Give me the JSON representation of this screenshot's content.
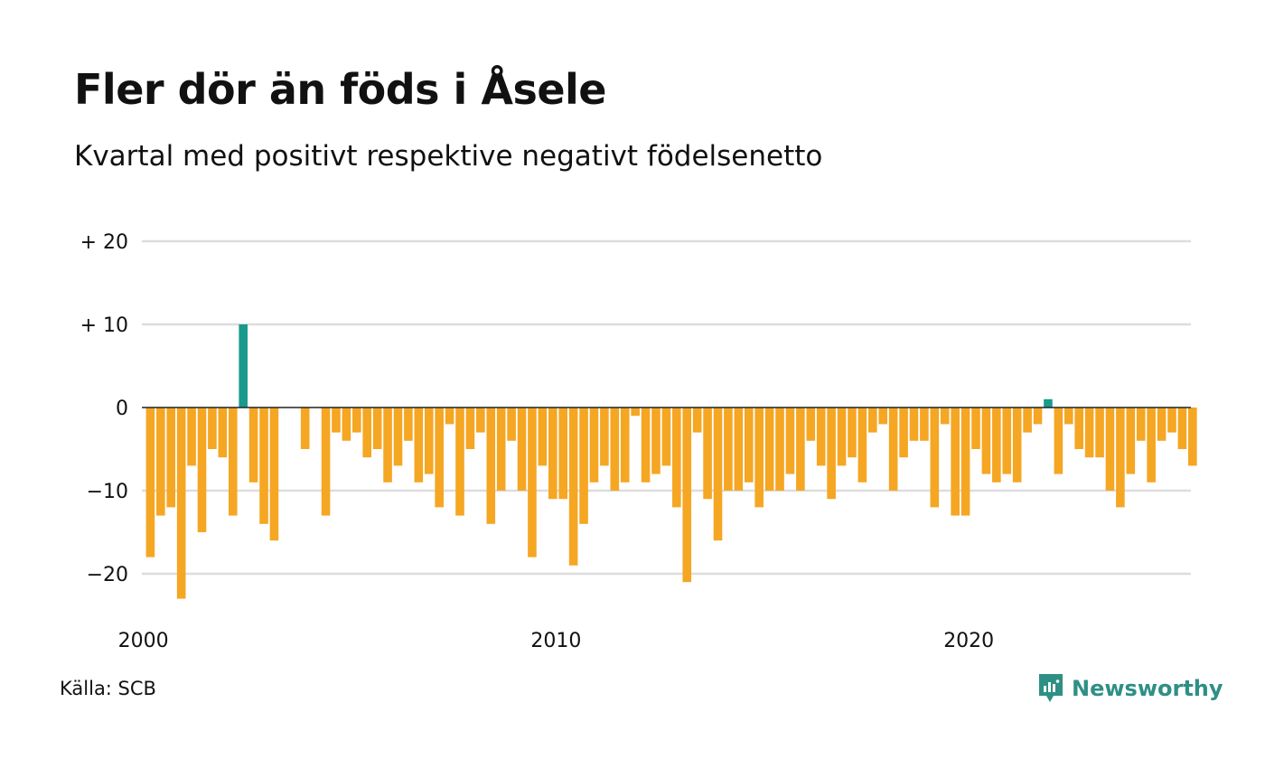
{
  "title": "Fler dör än föds i Åsele",
  "subtitle": "Kvartal med positivt respektive negativt födelsenetto",
  "source": "Källa: SCB",
  "brand": {
    "name": "Newsworthy",
    "icon": "newsworthy-logo-icon",
    "color": "#2e8f85"
  },
  "colors": {
    "positive": "#1a9a8c",
    "negative": "#f5a623",
    "grid": "#dddddd",
    "zero_line": "#222222"
  },
  "chart_data": {
    "type": "bar",
    "title": "Fler dör än föds i Åsele",
    "subtitle": "Kvartal med positivt respektive negativt födelsenetto",
    "xlabel": "",
    "ylabel": "",
    "ylim": [
      -25,
      20
    ],
    "y_ticks": [
      {
        "value": 20,
        "label": "+ 20"
      },
      {
        "value": 10,
        "label": "+ 10"
      },
      {
        "value": 0,
        "label": "0"
      },
      {
        "value": -10,
        "label": "−10"
      },
      {
        "value": -20,
        "label": "−20"
      }
    ],
    "x_start": 2000,
    "periods_per_year": 4,
    "x_ticks": [
      {
        "year": 2000,
        "label": "2000"
      },
      {
        "year": 2010,
        "label": "2010"
      },
      {
        "year": 2020,
        "label": "2020"
      }
    ],
    "grid": true,
    "values": [
      -18,
      -13,
      -12,
      -23,
      -7,
      -15,
      -5,
      -6,
      -13,
      10,
      -9,
      -14,
      -16,
      0,
      0,
      -5,
      0,
      -13,
      -3,
      -4,
      -3,
      -6,
      -5,
      -9,
      -7,
      -4,
      -9,
      -8,
      -12,
      -2,
      -13,
      -5,
      -3,
      -14,
      -10,
      -4,
      -10,
      -18,
      -7,
      -11,
      -11,
      -19,
      -14,
      -9,
      -7,
      -10,
      -9,
      -1,
      -9,
      -8,
      -7,
      -12,
      -21,
      -3,
      -11,
      -16,
      -10,
      -10,
      -9,
      -12,
      -10,
      -10,
      -8,
      -10,
      -4,
      -7,
      -11,
      -7,
      -6,
      -9,
      -3,
      -2,
      -10,
      -6,
      -4,
      -4,
      -12,
      -2,
      -13,
      -13,
      -5,
      -8,
      -9,
      -8,
      -9,
      -3,
      -2,
      1,
      -8,
      -2,
      -5,
      -6,
      -6,
      -10,
      -12,
      -8,
      -4,
      -9,
      -4,
      -3,
      -5,
      -7
    ]
  }
}
